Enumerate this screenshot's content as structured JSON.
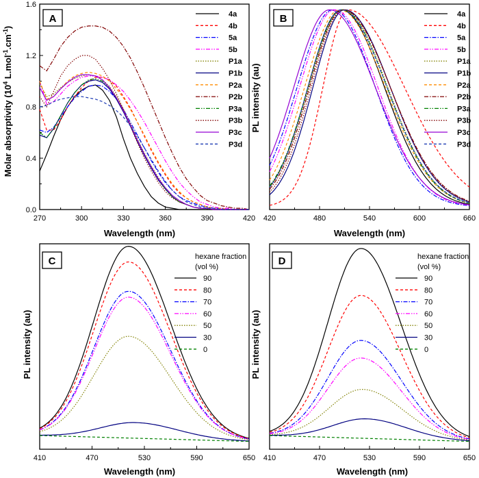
{
  "chart_data": [
    {
      "panel": "A",
      "type": "line",
      "xlabel": "Wavelength (nm)",
      "ylabel": "Molar absorptivity (10^4 L.mol^-1.cm^-1)",
      "ylabel_parts": {
        "base": "Molar absorptivity (10",
        "exp1": "4",
        "mid": " L.mol",
        "exp2": "-1",
        "mid2": ".cm",
        "exp3": "-1",
        "end": ")"
      },
      "xlim": [
        270,
        420
      ],
      "ylim": [
        0,
        1.6
      ],
      "xticks": [
        "270",
        "300",
        "330",
        "360",
        "390",
        "420"
      ],
      "yticks": [
        "0.0",
        "0.4",
        "0.8",
        "1.2",
        "1.6"
      ],
      "x": [
        270,
        275,
        280,
        285,
        290,
        295,
        300,
        305,
        310,
        315,
        320,
        325,
        330,
        335,
        340,
        345,
        350,
        355,
        360,
        365,
        370,
        375,
        380,
        385,
        390,
        395,
        400,
        405,
        410,
        415,
        420
      ],
      "series": [
        {
          "name": "4a",
          "values": [
            0.3,
            0.43,
            0.57,
            0.7,
            0.8,
            0.88,
            0.93,
            0.96,
            0.97,
            0.93,
            0.85,
            0.72,
            0.55,
            0.4,
            0.28,
            0.18,
            0.1,
            0.05,
            0.02,
            0.01,
            0,
            0,
            0,
            0,
            0,
            0,
            0,
            0,
            0,
            0,
            0
          ]
        },
        {
          "name": "4b",
          "values": [
            0.78,
            0.62,
            0.62,
            0.7,
            0.8,
            0.88,
            0.95,
            1.0,
            1.03,
            1.03,
            1.01,
            0.96,
            0.88,
            0.79,
            0.68,
            0.57,
            0.46,
            0.36,
            0.27,
            0.19,
            0.13,
            0.09,
            0.06,
            0.04,
            0.02,
            0.01,
            0.01,
            0,
            0,
            0,
            0
          ]
        },
        {
          "name": "5a",
          "values": [
            0.62,
            0.6,
            0.64,
            0.72,
            0.8,
            0.87,
            0.92,
            0.96,
            0.97,
            0.96,
            0.92,
            0.86,
            0.78,
            0.68,
            0.58,
            0.48,
            0.38,
            0.29,
            0.21,
            0.15,
            0.1,
            0.07,
            0.05,
            0.03,
            0.02,
            0.01,
            0.01,
            0,
            0,
            0,
            0
          ]
        },
        {
          "name": "5b",
          "values": [
            1.0,
            0.82,
            0.84,
            0.9,
            0.96,
            1.0,
            1.03,
            1.04,
            1.04,
            1.03,
            1.01,
            0.97,
            0.92,
            0.85,
            0.77,
            0.68,
            0.58,
            0.48,
            0.38,
            0.29,
            0.21,
            0.15,
            0.1,
            0.06,
            0.04,
            0.02,
            0.01,
            0.01,
            0,
            0,
            0
          ]
        },
        {
          "name": "P1a",
          "values": [
            0.98,
            0.88,
            0.9,
            0.95,
            0.99,
            1.02,
            1.04,
            1.05,
            1.04,
            1.01,
            0.96,
            0.88,
            0.78,
            0.67,
            0.55,
            0.44,
            0.34,
            0.25,
            0.17,
            0.11,
            0.07,
            0.04,
            0.02,
            0.01,
            0.01,
            0,
            0,
            0,
            0,
            0,
            0
          ]
        },
        {
          "name": "P1b",
          "values": [
            0.58,
            0.56,
            0.63,
            0.73,
            0.83,
            0.91,
            0.97,
            1.0,
            1.01,
            0.99,
            0.94,
            0.86,
            0.76,
            0.65,
            0.53,
            0.42,
            0.32,
            0.23,
            0.16,
            0.1,
            0.06,
            0.04,
            0.02,
            0.01,
            0.01,
            0,
            0,
            0,
            0,
            0,
            0
          ]
        },
        {
          "name": "P2a",
          "values": [
            1.0,
            0.86,
            0.88,
            0.94,
            1.0,
            1.04,
            1.06,
            1.07,
            1.06,
            1.04,
            1.0,
            0.94,
            0.87,
            0.78,
            0.68,
            0.58,
            0.47,
            0.37,
            0.28,
            0.2,
            0.14,
            0.09,
            0.06,
            0.04,
            0.02,
            0.01,
            0.01,
            0,
            0,
            0,
            0
          ]
        },
        {
          "name": "P2b",
          "values": [
            1.12,
            1.08,
            1.17,
            1.27,
            1.34,
            1.39,
            1.42,
            1.43,
            1.43,
            1.42,
            1.39,
            1.34,
            1.27,
            1.18,
            1.07,
            0.95,
            0.82,
            0.69,
            0.56,
            0.44,
            0.33,
            0.24,
            0.17,
            0.11,
            0.07,
            0.05,
            0.03,
            0.02,
            0.01,
            0.01,
            0
          ]
        },
        {
          "name": "P3a",
          "values": [
            0.6,
            0.56,
            0.63,
            0.73,
            0.83,
            0.91,
            0.97,
            1.01,
            1.02,
            1.0,
            0.95,
            0.87,
            0.77,
            0.66,
            0.54,
            0.43,
            0.33,
            0.24,
            0.16,
            0.1,
            0.06,
            0.04,
            0.02,
            0.01,
            0.01,
            0,
            0,
            0,
            0,
            0,
            0
          ]
        },
        {
          "name": "P3b",
          "values": [
            0.88,
            0.8,
            0.92,
            1.04,
            1.12,
            1.17,
            1.2,
            1.2,
            1.17,
            1.1,
            1.01,
            0.9,
            0.78,
            0.65,
            0.52,
            0.4,
            0.3,
            0.21,
            0.14,
            0.09,
            0.06,
            0.04,
            0.02,
            0.01,
            0.01,
            0,
            0,
            0,
            0,
            0,
            0
          ]
        },
        {
          "name": "P3c",
          "values": [
            0.95,
            0.85,
            0.88,
            0.94,
            0.99,
            1.03,
            1.05,
            1.05,
            1.04,
            1.01,
            0.95,
            0.87,
            0.77,
            0.66,
            0.54,
            0.43,
            0.33,
            0.24,
            0.17,
            0.11,
            0.07,
            0.04,
            0.02,
            0.01,
            0.01,
            0,
            0,
            0,
            0,
            0,
            0
          ]
        },
        {
          "name": "P3d",
          "values": [
            0.8,
            0.81,
            0.84,
            0.86,
            0.87,
            0.88,
            0.88,
            0.87,
            0.86,
            0.84,
            0.81,
            0.77,
            0.72,
            0.65,
            0.57,
            0.48,
            0.39,
            0.3,
            0.22,
            0.15,
            0.1,
            0.06,
            0.04,
            0.02,
            0.01,
            0.01,
            0,
            0,
            0,
            0,
            0
          ]
        }
      ],
      "legend_position": "top-right"
    },
    {
      "panel": "B",
      "type": "line",
      "xlabel": "Wavelength (nm)",
      "ylabel": "PL intensity (au)",
      "xlim": [
        420,
        660
      ],
      "ylim": [
        0,
        1.45
      ],
      "xticks": [
        "420",
        "480",
        "540",
        "600",
        "660"
      ],
      "yticks": [],
      "series": [
        {
          "name": "4a",
          "peak": 506,
          "width_left": 40,
          "width_right": 52
        },
        {
          "name": "4b",
          "peak": 514,
          "width_left": 30,
          "width_right": 68
        },
        {
          "name": "5a",
          "peak": 496,
          "width_left": 43,
          "width_right": 51
        },
        {
          "name": "5b",
          "peak": 498,
          "width_left": 42,
          "width_right": 52
        },
        {
          "name": "P1a",
          "peak": 508,
          "width_left": 41,
          "width_right": 54
        },
        {
          "name": "P1b",
          "peak": 510,
          "width_left": 38,
          "width_right": 55
        },
        {
          "name": "P2a",
          "peak": 504,
          "width_left": 42,
          "width_right": 55
        },
        {
          "name": "P2b",
          "peak": 508,
          "width_left": 40,
          "width_right": 57
        },
        {
          "name": "P3a",
          "peak": 507,
          "width_left": 41,
          "width_right": 54
        },
        {
          "name": "P3b",
          "peak": 509,
          "width_left": 39,
          "width_right": 56
        },
        {
          "name": "P3c",
          "peak": 492,
          "width_left": 43,
          "width_right": 55
        },
        {
          "name": "P3d",
          "peak": 506,
          "width_left": 40,
          "width_right": 55
        }
      ],
      "legend_position": "top-right"
    },
    {
      "panel": "C",
      "type": "line",
      "xlabel": "Wavelength (nm)",
      "ylabel": "PL intensity (au)",
      "xlim": [
        410,
        650
      ],
      "ylim": [
        0,
        1.05
      ],
      "xticks": [
        "410",
        "470",
        "530",
        "590",
        "650"
      ],
      "yticks": [],
      "legend_title": "hexane fraction",
      "legend_subtitle": "(vol %)",
      "series": [
        {
          "name": "90",
          "amplitude": 0.98,
          "peak": 512
        },
        {
          "name": "80",
          "amplitude": 0.9,
          "peak": 512
        },
        {
          "name": "70",
          "amplitude": 0.75,
          "peak": 512
        },
        {
          "name": "60",
          "amplitude": 0.72,
          "peak": 512
        },
        {
          "name": "50",
          "amplitude": 0.52,
          "peak": 512
        },
        {
          "name": "30",
          "amplitude": 0.08,
          "peak": 520
        },
        {
          "name": "0",
          "amplitude": 0.0,
          "peak": 520
        }
      ],
      "legend_position": "top-right"
    },
    {
      "panel": "D",
      "type": "line",
      "xlabel": "Wavelength (nm)",
      "ylabel": "PL intensity (au)",
      "xlim": [
        410,
        650
      ],
      "ylim": [
        0,
        1.05
      ],
      "xticks": [
        "410",
        "470",
        "530",
        "590",
        "650"
      ],
      "yticks": [],
      "legend_title": "hexane fraction",
      "legend_subtitle": "(vol %)",
      "series": [
        {
          "name": "90",
          "amplitude": 0.97,
          "peak": 520
        },
        {
          "name": "80",
          "amplitude": 0.73,
          "peak": 520
        },
        {
          "name": "70",
          "amplitude": 0.5,
          "peak": 520
        },
        {
          "name": "60",
          "amplitude": 0.41,
          "peak": 520
        },
        {
          "name": "50",
          "amplitude": 0.25,
          "peak": 522
        },
        {
          "name": "30",
          "amplitude": 0.1,
          "peak": 526
        },
        {
          "name": "0",
          "amplitude": 0.0,
          "peak": 526
        }
      ],
      "legend_position": "top-right"
    }
  ],
  "styles": {
    "4a": {
      "color": "#000000",
      "dash": ""
    },
    "4b": {
      "color": "#ff0000",
      "dash": "4,3"
    },
    "5a": {
      "color": "#0000ff",
      "dash": "6,2,1.5,2"
    },
    "5b": {
      "color": "#ff00ff",
      "dash": "6,2,1.5,2,1.5,2"
    },
    "P1a": {
      "color": "#808000",
      "dash": "1.5,2"
    },
    "P1b": {
      "color": "#000080",
      "dash": ""
    },
    "P2a": {
      "color": "#ff8c00",
      "dash": "4,3"
    },
    "P2b": {
      "color": "#800000",
      "dash": "6,2,1.5,2"
    },
    "P3a": {
      "color": "#008000",
      "dash": "6,2,1.5,2,1.5,2"
    },
    "P3b": {
      "color": "#800000",
      "dash": "1.5,2"
    },
    "P3c": {
      "color": "#9400d3",
      "dash": ""
    },
    "P3d": {
      "color": "#1e3cb4",
      "dash": "4,3"
    },
    "90": {
      "color": "#000000",
      "dash": ""
    },
    "80": {
      "color": "#ff0000",
      "dash": "4,3"
    },
    "70": {
      "color": "#0000ff",
      "dash": "6,2,1.5,2"
    },
    "60": {
      "color": "#ff00ff",
      "dash": "6,2,1.5,2,1.5,2"
    },
    "50": {
      "color": "#808000",
      "dash": "1.5,2"
    },
    "30": {
      "color": "#000080",
      "dash": ""
    },
    "0": {
      "color": "#008000",
      "dash": "4,3"
    }
  }
}
